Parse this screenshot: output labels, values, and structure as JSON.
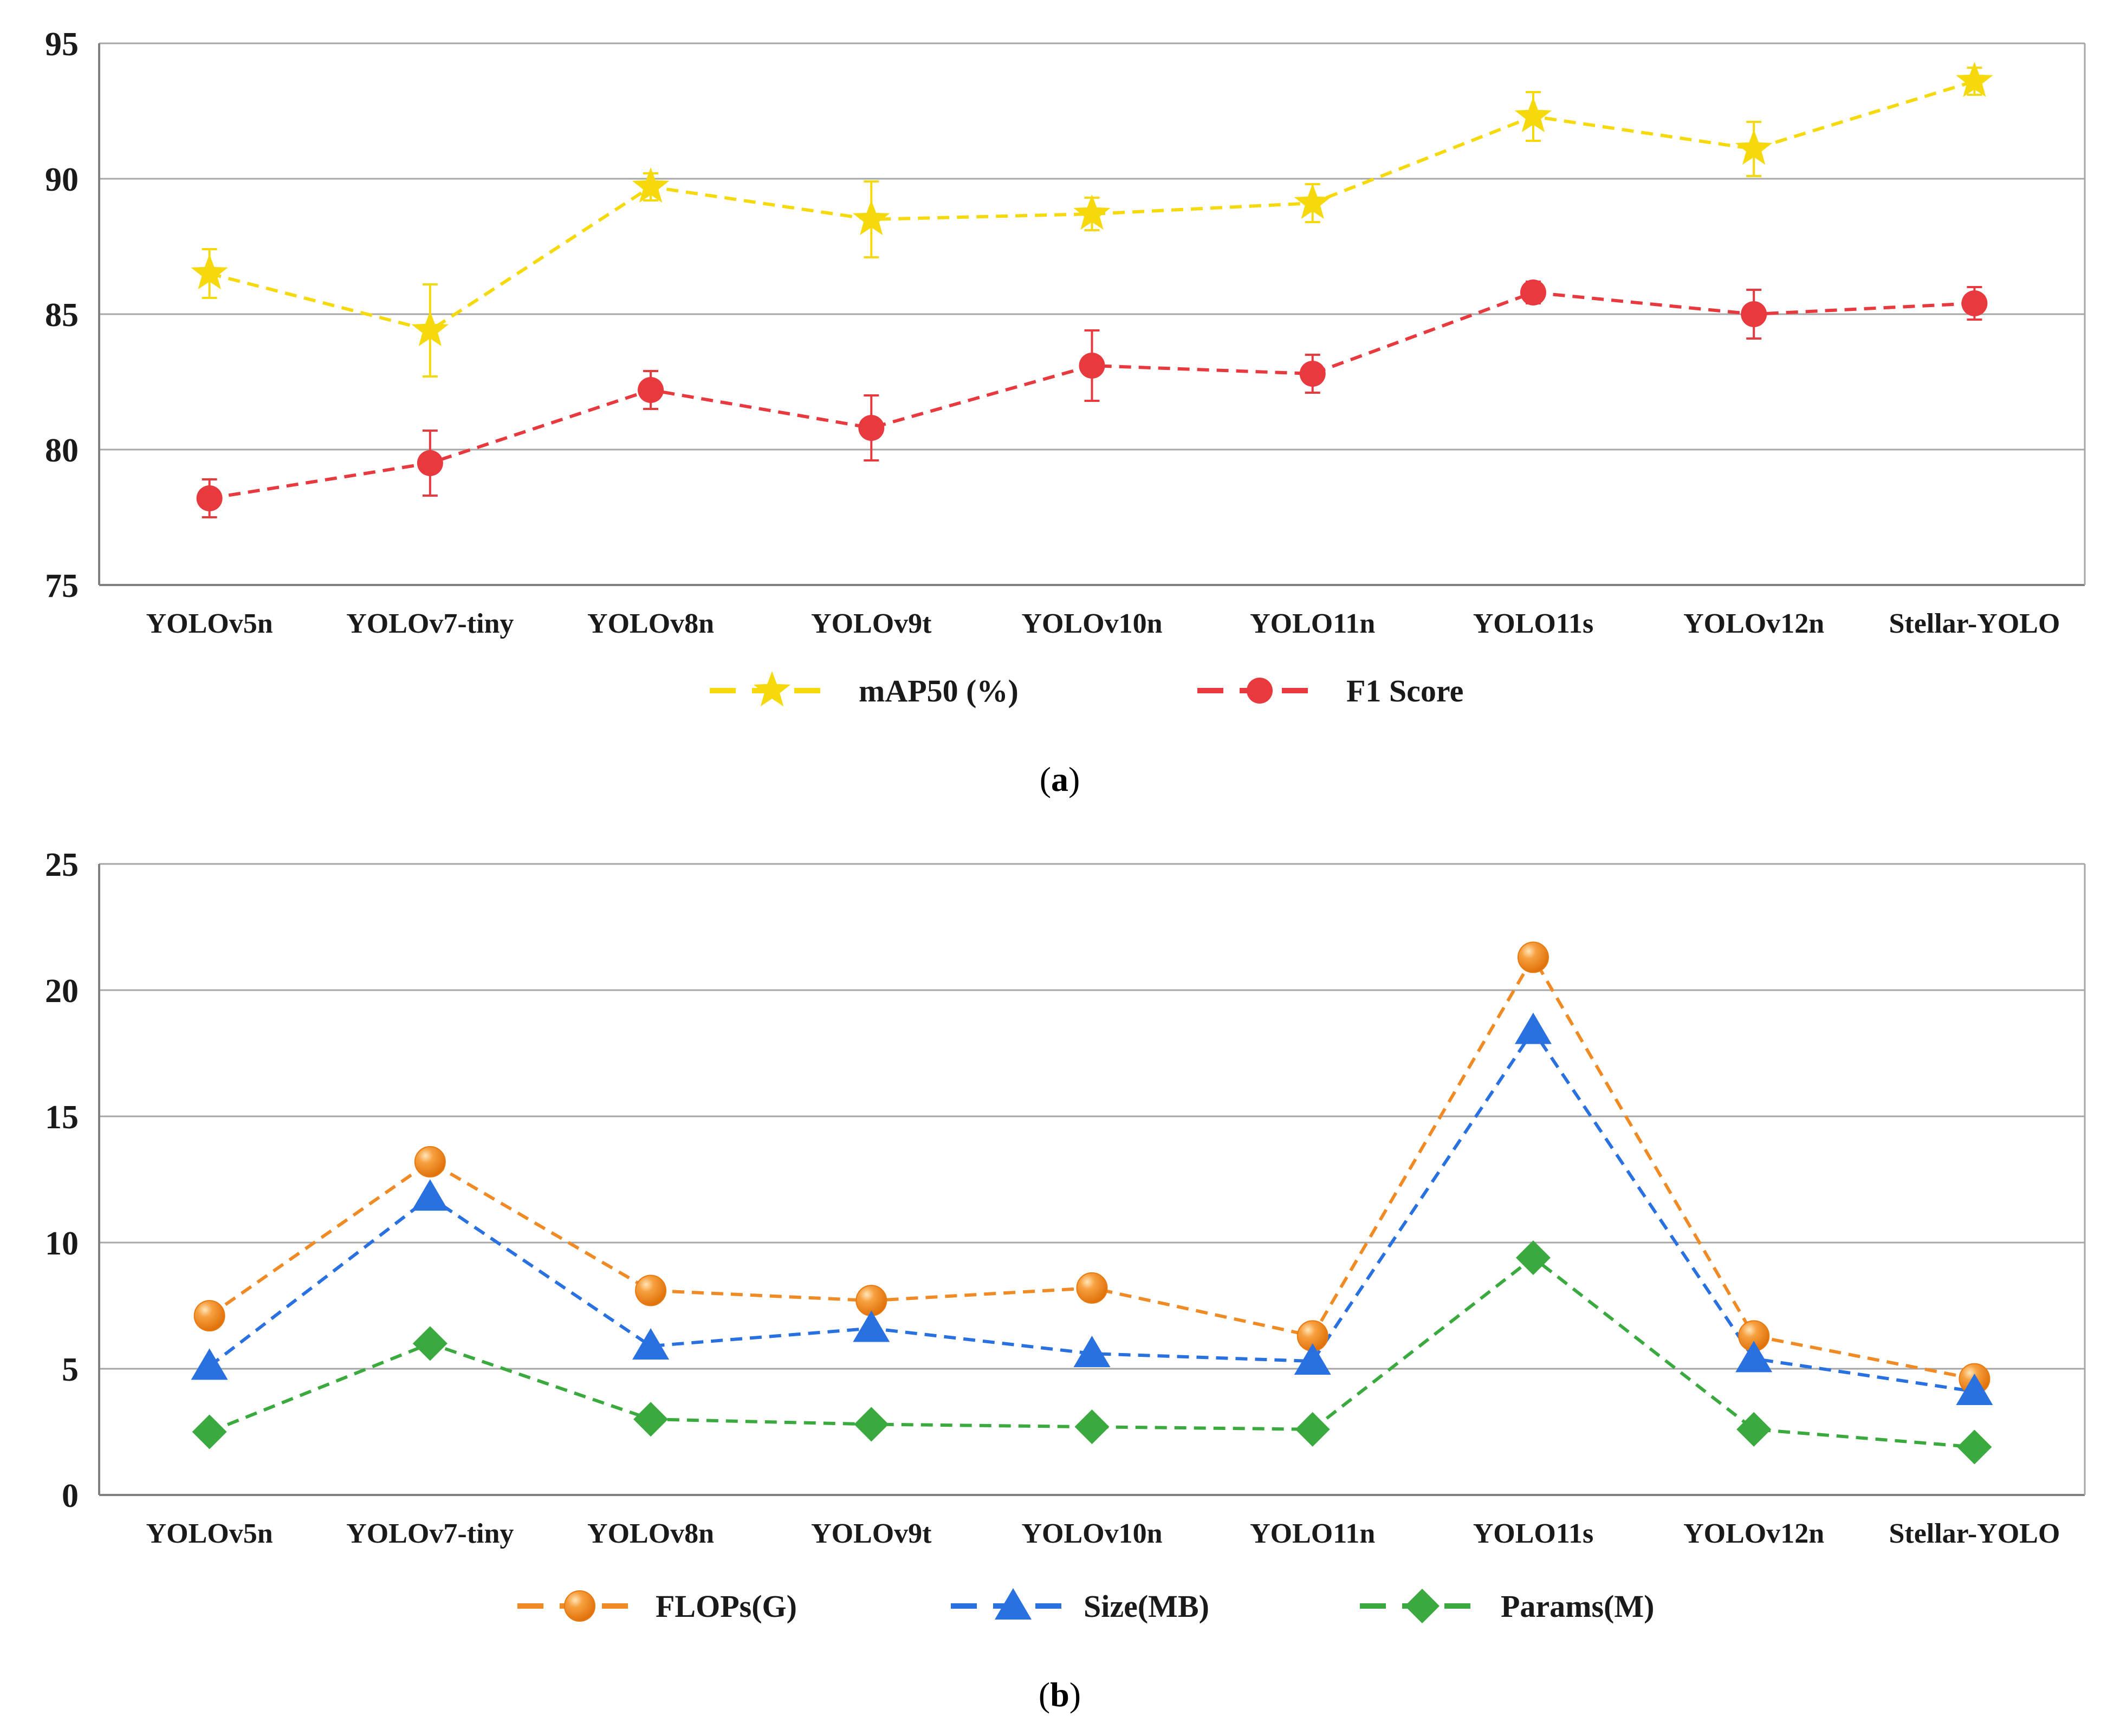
{
  "chart_data": [
    {
      "id": "a",
      "type": "line",
      "panel_label": "a",
      "categories": [
        "YOLOv5n",
        "YOLOv7-tiny",
        "YOLOv8n",
        "YOLOv9t",
        "YOLOv10n",
        "YOLO11n",
        "YOLO11s",
        "YOLOv12n",
        "Stellar-YOLO"
      ],
      "ylim": [
        75,
        95
      ],
      "yticks": [
        75,
        80,
        85,
        90,
        95
      ],
      "grid": true,
      "legend_position": "bottom",
      "series": [
        {
          "name": "mAP50 (%)",
          "color": "#f5d90a",
          "marker": "star",
          "values": [
            86.5,
            84.4,
            89.7,
            88.5,
            88.7,
            89.1,
            92.3,
            91.1,
            93.6
          ],
          "errors": [
            0.9,
            1.7,
            0.5,
            1.4,
            0.6,
            0.7,
            0.9,
            1.0,
            0.5
          ]
        },
        {
          "name": "F1 Score",
          "color": "#e8393f",
          "marker": "circle",
          "values": [
            78.2,
            79.5,
            82.2,
            80.8,
            83.1,
            82.8,
            85.8,
            85.0,
            85.4
          ],
          "errors": [
            0.7,
            1.2,
            0.7,
            1.2,
            1.3,
            0.7,
            0.4,
            0.9,
            0.6
          ]
        }
      ]
    },
    {
      "id": "b",
      "type": "line",
      "panel_label": "b",
      "categories": [
        "YOLOv5n",
        "YOLOv7-tiny",
        "YOLOv8n",
        "YOLOv9t",
        "YOLOv10n",
        "YOLO11n",
        "YOLO11s",
        "YOLOv12n",
        "Stellar-YOLO"
      ],
      "ylim": [
        0,
        25
      ],
      "yticks": [
        0,
        5,
        10,
        15,
        20,
        25
      ],
      "grid": true,
      "legend_position": "bottom",
      "series": [
        {
          "name": "FLOPs(G)",
          "color": "#f08a24",
          "marker": "sphere",
          "values": [
            7.1,
            13.2,
            8.1,
            7.7,
            8.2,
            6.3,
            21.3,
            6.3,
            4.6
          ]
        },
        {
          "name": "Size(MB)",
          "color": "#2970e0",
          "marker": "triangle",
          "values": [
            5.1,
            11.8,
            5.9,
            6.6,
            5.6,
            5.3,
            18.4,
            5.4,
            4.1
          ]
        },
        {
          "name": "Params(M)",
          "color": "#3aaa3e",
          "marker": "diamond",
          "values": [
            2.5,
            6.0,
            3.0,
            2.8,
            2.7,
            2.6,
            9.4,
            2.6,
            1.9
          ]
        }
      ]
    }
  ]
}
